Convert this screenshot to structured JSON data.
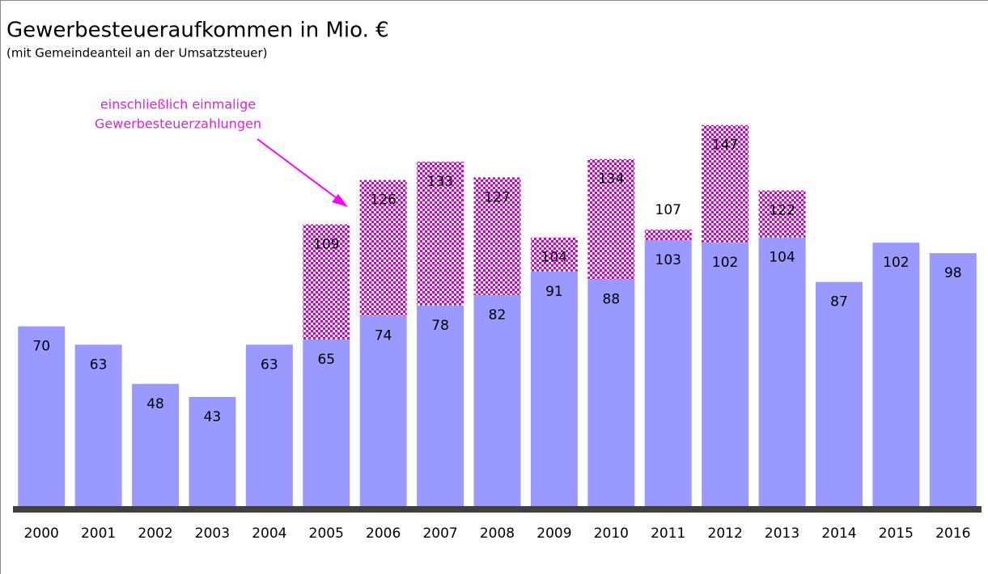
{
  "chart_data": {
    "type": "stacked_bar",
    "title": "Gewerbesteueraufkommen in Mio. €",
    "subtitle": "(mit Gemeindeanteil an der Umsatzsteuer)",
    "annotation": [
      "einschließlich einmalige",
      "Gewerbesteuerzahlungen"
    ],
    "categories": [
      "2000",
      "2001",
      "2002",
      "2003",
      "2004",
      "2005",
      "2006",
      "2007",
      "2008",
      "2009",
      "2010",
      "2011",
      "2012",
      "2013",
      "2014",
      "2015",
      "2016"
    ],
    "series": [
      {
        "color": "#9999ff",
        "values": [
          70,
          63,
          48,
          43,
          63,
          65,
          74,
          78,
          82,
          91,
          88,
          103,
          102,
          104,
          87,
          102,
          98
        ]
      },
      {
        "color": "#cc00cc",
        "values": [
          null,
          null,
          null,
          null,
          null,
          44,
          52,
          55,
          45,
          13,
          46,
          4,
          45,
          18,
          null,
          null,
          null
        ]
      }
    ],
    "totals": [
      null,
      null,
      null,
      null,
      null,
      109,
      126,
      133,
      127,
      104,
      134,
      107,
      147,
      122,
      null,
      null,
      null
    ],
    "ylim": [
      0,
      150
    ]
  }
}
